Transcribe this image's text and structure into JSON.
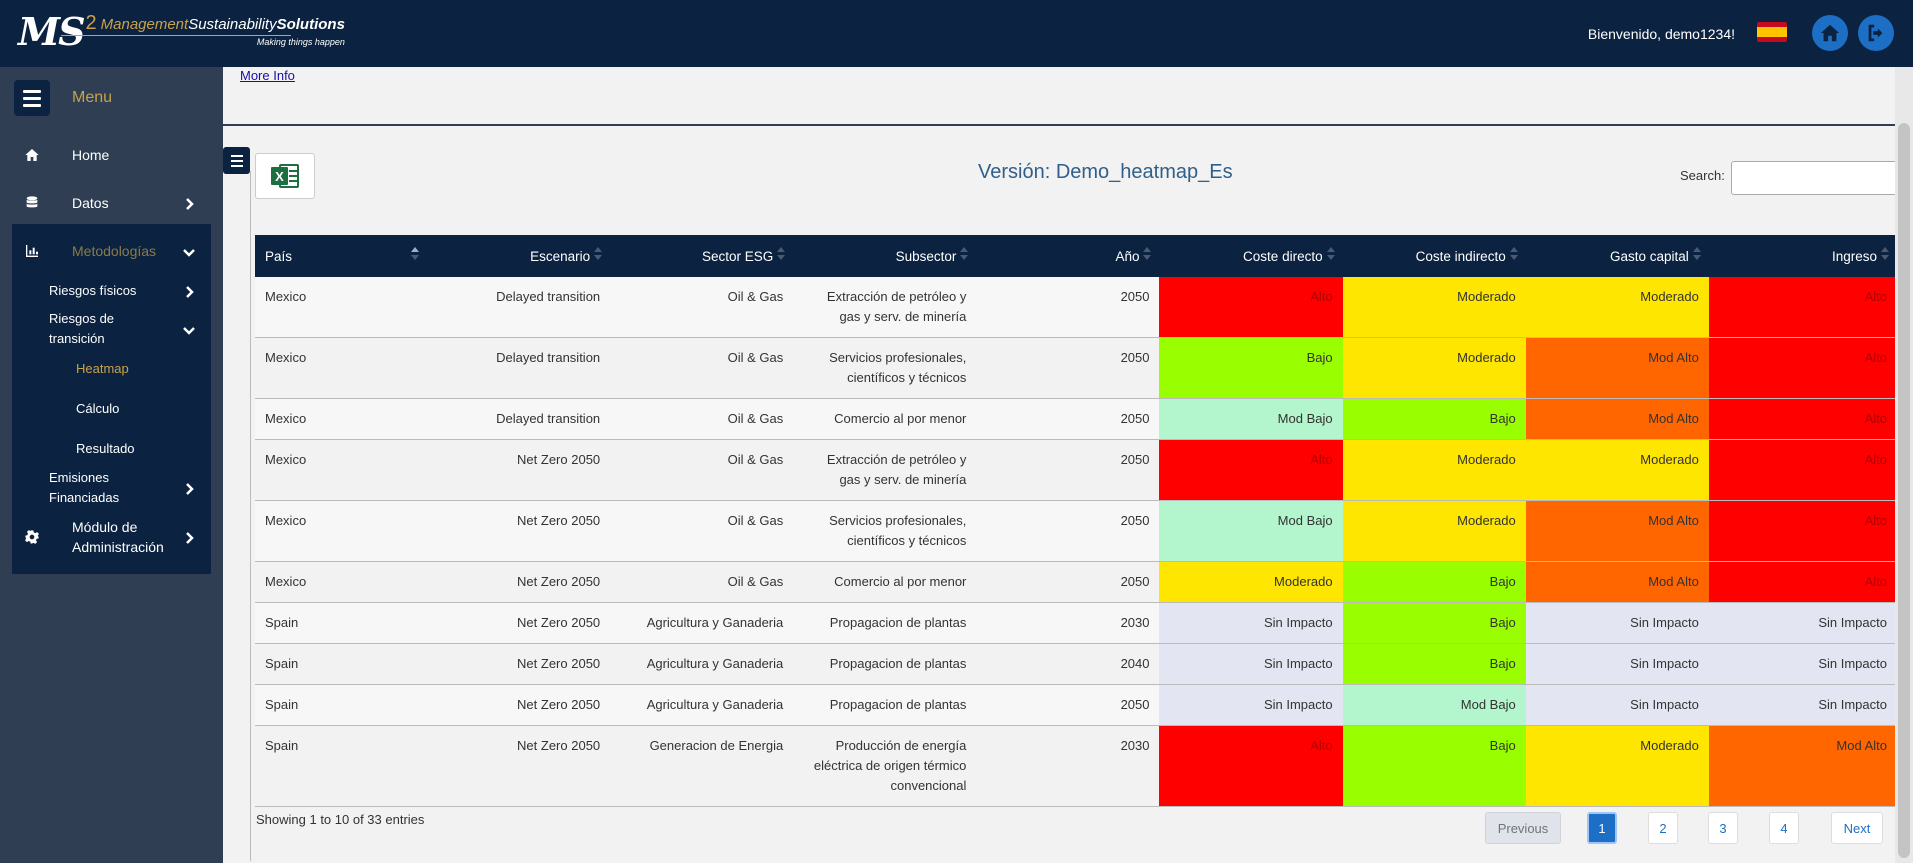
{
  "header": {
    "logo_main": "MS",
    "logo_sup": "2",
    "logo_word1": "Management",
    "logo_word2": "Sustainability",
    "logo_word3": "Solutions",
    "logo_tagline": "Making things happen",
    "welcome": "Bienvenido, demo1234!",
    "flag": "spain-flag",
    "home_icon": "home-icon",
    "logout_icon": "logout-icon"
  },
  "sidebar": {
    "menu_label": "Menu",
    "items": [
      {
        "label": "Home",
        "icon": "home-icon"
      },
      {
        "label": "Datos",
        "icon": "database-icon"
      },
      {
        "label": "Metodologías",
        "icon": "chart-icon"
      },
      {
        "label": "Riesgos físicos"
      },
      {
        "label": "Riesgos de transición"
      },
      {
        "label": "Heatmap"
      },
      {
        "label": "Cálculo"
      },
      {
        "label": "Resultado"
      },
      {
        "label": "Emisiones Financiadas"
      },
      {
        "label": "Módulo de Administración",
        "icon": "gear-icon"
      }
    ]
  },
  "main": {
    "more_info": "More Info",
    "version_title": "Versión: Demo_heatmap_Es",
    "search_label": "Search:",
    "search_value": "",
    "columns": [
      "País",
      "Escenario",
      "Sector ESG",
      "Subsector",
      "Año",
      "Coste directo",
      "Coste indirecto",
      "Gasto capital",
      "Ingreso"
    ],
    "rows": [
      [
        "Mexico",
        "Delayed transition",
        "Oil & Gas",
        "Extracción de petróleo y gas y serv. de minería",
        "2050",
        "Alto",
        "Moderado",
        "Moderado",
        "Alto"
      ],
      [
        "Mexico",
        "Delayed transition",
        "Oil & Gas",
        "Servicios profesionales, científicos y técnicos",
        "2050",
        "Bajo",
        "Moderado",
        "Mod Alto",
        "Alto"
      ],
      [
        "Mexico",
        "Delayed transition",
        "Oil & Gas",
        "Comercio al por menor",
        "2050",
        "Mod Bajo",
        "Bajo",
        "Mod Alto",
        "Alto"
      ],
      [
        "Mexico",
        "Net Zero 2050",
        "Oil & Gas",
        "Extracción de petróleo y gas y serv. de minería",
        "2050",
        "Alto",
        "Moderado",
        "Moderado",
        "Alto"
      ],
      [
        "Mexico",
        "Net Zero 2050",
        "Oil & Gas",
        "Servicios profesionales, científicos y técnicos",
        "2050",
        "Mod Bajo",
        "Moderado",
        "Mod Alto",
        "Alto"
      ],
      [
        "Mexico",
        "Net Zero 2050",
        "Oil & Gas",
        "Comercio al por menor",
        "2050",
        "Moderado",
        "Bajo",
        "Mod Alto",
        "Alto"
      ],
      [
        "Spain",
        "Net Zero 2050",
        "Agricultura y Ganaderia",
        "Propagacion de plantas",
        "2030",
        "Sin Impacto",
        "Bajo",
        "Sin Impacto",
        "Sin Impacto"
      ],
      [
        "Spain",
        "Net Zero 2050",
        "Agricultura y Ganaderia",
        "Propagacion de plantas",
        "2040",
        "Sin Impacto",
        "Bajo",
        "Sin Impacto",
        "Sin Impacto"
      ],
      [
        "Spain",
        "Net Zero 2050",
        "Agricultura y Ganaderia",
        "Propagacion de plantas",
        "2050",
        "Sin Impacto",
        "Mod Bajo",
        "Sin Impacto",
        "Sin Impacto"
      ],
      [
        "Spain",
        "Net Zero 2050",
        "Generacion de Energia",
        "Producción de energía eléctrica de origen térmico convencional",
        "2030",
        "Alto",
        "Bajo",
        "Moderado",
        "Mod Alto"
      ]
    ],
    "level_colors": {
      "Alto": "#ff0000",
      "Mod Alto": "#ff6600",
      "Moderado": "#ffe600",
      "Bajo": "#99ff00",
      "Mod Bajo": "#b3f5cc",
      "Sin Impacto": "#e3e6f2"
    },
    "showing": "Showing 1 to 10 of 33 entries",
    "pagination": {
      "previous": "Previous",
      "pages": [
        "1",
        "2",
        "3",
        "4"
      ],
      "current": "1",
      "next": "Next"
    }
  }
}
